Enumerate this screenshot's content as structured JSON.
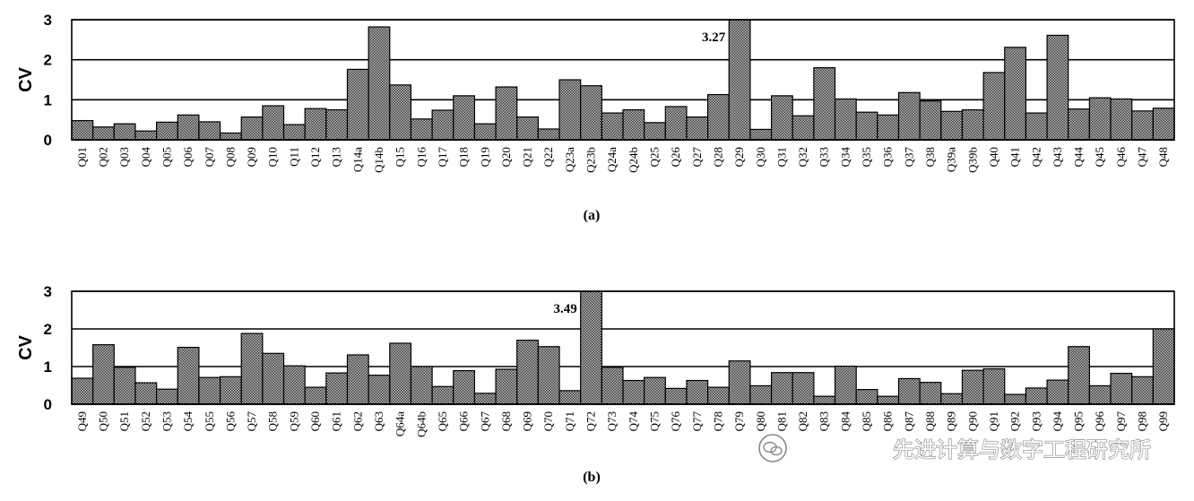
{
  "watermark": "先进计算与数字工程研究所",
  "watermark_icon": "wechat-icon",
  "bar_fill": "#6f6f6f",
  "chart_data": [
    {
      "type": "bar",
      "caption": "(a)",
      "ylabel": "CV",
      "ylim": [
        0,
        3
      ],
      "yticks": [
        0,
        1,
        2,
        3
      ],
      "grid": "horizontal",
      "annotation": {
        "text": "3.27",
        "category": "Q29"
      },
      "categories": [
        "Q01",
        "Q02",
        "Q03",
        "Q04",
        "Q05",
        "Q06",
        "Q07",
        "Q08",
        "Q09",
        "Q10",
        "Q11",
        "Q12",
        "Q13",
        "Q14a",
        "Q14b",
        "Q15",
        "Q16",
        "Q17",
        "Q18",
        "Q19",
        "Q20",
        "Q21",
        "Q22",
        "Q23a",
        "Q23b",
        "Q24a",
        "Q24b",
        "Q25",
        "Q26",
        "Q27",
        "Q28",
        "Q29",
        "Q30",
        "Q31",
        "Q32",
        "Q33",
        "Q34",
        "Q35",
        "Q36",
        "Q37",
        "Q38",
        "Q39a",
        "Q39b",
        "Q40",
        "Q41",
        "Q42",
        "Q43",
        "Q44",
        "Q45",
        "Q46",
        "Q47",
        "Q48"
      ],
      "values": [
        0.48,
        0.32,
        0.4,
        0.22,
        0.44,
        0.62,
        0.45,
        0.17,
        0.57,
        0.85,
        0.38,
        0.78,
        0.75,
        1.76,
        2.82,
        1.37,
        0.52,
        0.74,
        1.1,
        0.4,
        1.32,
        0.57,
        0.27,
        1.5,
        1.35,
        0.67,
        0.75,
        0.43,
        0.83,
        0.57,
        1.13,
        3.27,
        0.26,
        1.1,
        0.6,
        1.8,
        1.02,
        0.69,
        0.62,
        1.18,
        0.97,
        0.71,
        0.75,
        1.68,
        2.31,
        0.67,
        2.61,
        0.77,
        1.05,
        1.02,
        0.72,
        0.79
      ]
    },
    {
      "type": "bar",
      "caption": "(b)",
      "ylabel": "CV",
      "ylim": [
        0,
        3
      ],
      "yticks": [
        0,
        1,
        2,
        3
      ],
      "grid": "horizontal",
      "annotation": {
        "text": "3.49",
        "category": "Q72"
      },
      "categories": [
        "Q49",
        "Q50",
        "Q51",
        "Q52",
        "Q53",
        "Q54",
        "Q55",
        "Q56",
        "Q57",
        "Q58",
        "Q59",
        "Q60",
        "Q61",
        "Q62",
        "Q63",
        "Q64a",
        "Q64b",
        "Q65",
        "Q66",
        "Q67",
        "Q68",
        "Q69",
        "Q70",
        "Q71",
        "Q72",
        "Q73",
        "Q74",
        "Q75",
        "Q76",
        "Q77",
        "Q78",
        "Q79",
        "Q80",
        "Q81",
        "Q82",
        "Q83",
        "Q84",
        "Q85",
        "Q86",
        "Q87",
        "Q88",
        "Q89",
        "Q90",
        "Q91",
        "Q92",
        "Q93",
        "Q94",
        "Q95",
        "Q96",
        "Q97",
        "Q98",
        "Q99"
      ],
      "values": [
        0.69,
        1.58,
        0.98,
        0.57,
        0.4,
        1.51,
        0.71,
        0.73,
        1.88,
        1.35,
        1.02,
        0.45,
        0.83,
        1.31,
        0.77,
        1.62,
        1.0,
        0.47,
        0.89,
        0.29,
        0.93,
        1.7,
        1.53,
        0.36,
        3.49,
        0.98,
        0.63,
        0.71,
        0.42,
        0.63,
        0.45,
        1.15,
        0.49,
        0.84,
        0.84,
        0.21,
        1.01,
        0.39,
        0.21,
        0.68,
        0.58,
        0.28,
        0.9,
        0.94,
        0.26,
        0.43,
        0.64,
        1.53,
        0.49,
        0.82,
        0.73,
        2.0
      ]
    }
  ]
}
